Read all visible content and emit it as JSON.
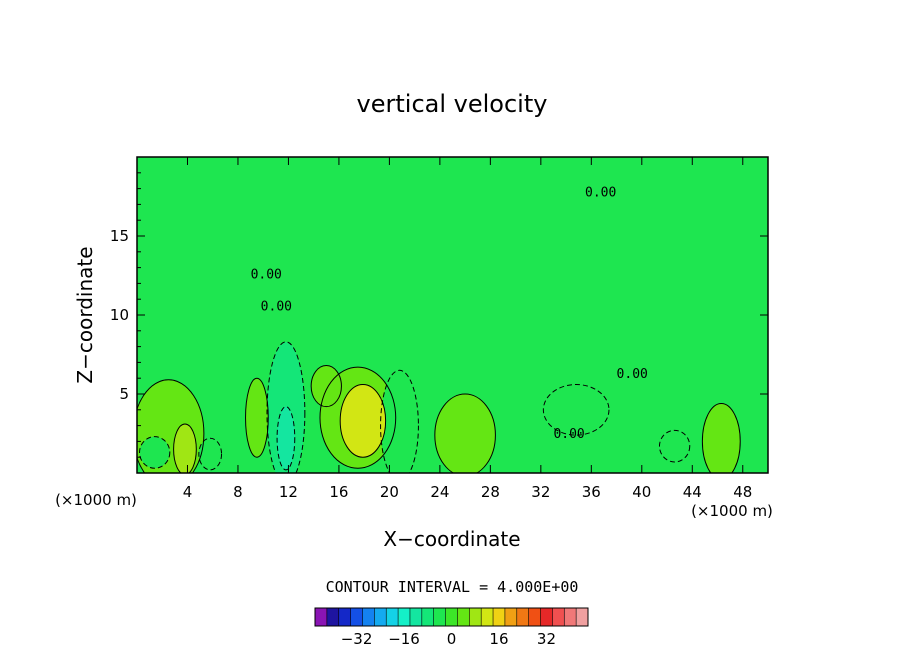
{
  "chart_data": {
    "type": "heatmap",
    "title": "vertical velocity",
    "xlabel": "X−coordinate",
    "ylabel": "Z−coordinate",
    "x_unit_label": "(×1000 m)",
    "y_unit_label": "(×1000 m)",
    "xlim": [
      0,
      50
    ],
    "ylim": [
      0,
      20
    ],
    "x_ticks": [
      4,
      8,
      12,
      16,
      20,
      24,
      28,
      32,
      36,
      40,
      44,
      48
    ],
    "y_ticks": [
      5,
      10,
      15
    ],
    "contour_interval_label": "CONTOUR INTERVAL = 4.000E+00",
    "contour_interval": 4.0,
    "zero_contour_label": "0.00",
    "colorbar": {
      "levels": [
        -36,
        -32,
        -28,
        -24,
        -20,
        -16,
        -12,
        -8,
        -4,
        0,
        4,
        8,
        12,
        16,
        20,
        24,
        28,
        32,
        36
      ],
      "tick_values": [
        -32,
        -16,
        0,
        16,
        32
      ],
      "tick_labels": [
        "−32",
        "−16",
        "0",
        "16",
        "32"
      ],
      "colors": [
        "#8a14b4",
        "#1e14a0",
        "#1428c8",
        "#1450e6",
        "#1482f0",
        "#14aaf0",
        "#14d2e6",
        "#14f0c8",
        "#14e6a0",
        "#14e678",
        "#1ee650",
        "#3ce628",
        "#64e614",
        "#a0e614",
        "#d2e614",
        "#f0d214",
        "#f0a014",
        "#f07814",
        "#f05014",
        "#e62828",
        "#f05050",
        "#f07878",
        "#f0a0a0"
      ]
    },
    "background_level_color": "#1ee650",
    "features": [
      {
        "kind": "updraft",
        "x": 3.8,
        "z": 1.5,
        "rx": 0.9,
        "rz": 1.6,
        "value": 8
      },
      {
        "kind": "updraft",
        "x": 2.5,
        "z": 2.5,
        "rx": 2.8,
        "rz": 3.4,
        "value": 4
      },
      {
        "kind": "updraft",
        "x": 17.9,
        "z": 3.3,
        "rx": 1.8,
        "rz": 2.3,
        "value": 12
      },
      {
        "kind": "updraft",
        "x": 17.5,
        "z": 3.5,
        "rx": 3.0,
        "rz": 3.2,
        "value": 4
      },
      {
        "kind": "updraft",
        "x": 26.0,
        "z": 2.4,
        "rx": 2.4,
        "rz": 2.6,
        "value": 4
      },
      {
        "kind": "updraft",
        "x": 46.3,
        "z": 2.0,
        "rx": 1.5,
        "rz": 2.4,
        "value": 4
      },
      {
        "kind": "updraft",
        "x": 15.0,
        "z": 5.5,
        "rx": 1.2,
        "rz": 1.3,
        "value": 4
      },
      {
        "kind": "updraft",
        "x": 9.5,
        "z": 3.5,
        "rx": 0.9,
        "rz": 2.5,
        "value": 4
      },
      {
        "kind": "downdraft",
        "x": 11.8,
        "z": 3.8,
        "rx": 1.5,
        "rz": 4.5,
        "value": -8
      },
      {
        "kind": "downdraft",
        "x": 11.8,
        "z": 2.2,
        "rx": 0.7,
        "rz": 2.0,
        "value": -12
      },
      {
        "kind": "downdraft",
        "x": 20.8,
        "z": 3.0,
        "rx": 1.5,
        "rz": 3.5,
        "value": -4
      },
      {
        "kind": "downdraft",
        "x": 34.8,
        "z": 4.0,
        "rx": 2.6,
        "rz": 1.6,
        "value": -4
      },
      {
        "kind": "downdraft",
        "x": 42.6,
        "z": 1.7,
        "rx": 1.2,
        "rz": 1.0,
        "value": -4
      },
      {
        "kind": "downdraft",
        "x": 5.8,
        "z": 1.2,
        "rx": 0.9,
        "rz": 1.0,
        "value": -4
      },
      {
        "kind": "downdraft",
        "x": 1.4,
        "z": 1.3,
        "rx": 1.2,
        "rz": 1.0,
        "value": -4
      }
    ]
  }
}
